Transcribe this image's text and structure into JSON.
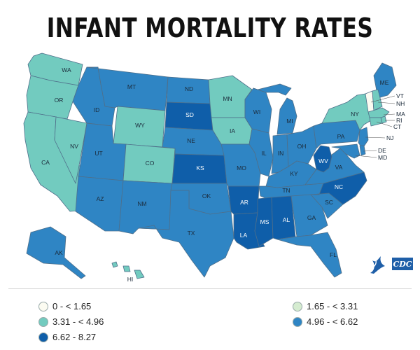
{
  "title": "INFANT MORTALITY RATES",
  "colors": {
    "c0": "#fbfbf1",
    "c1": "#d5ecd0",
    "c2": "#72cbbf",
    "c3": "#2f85c4",
    "c4": "#0f5ea9",
    "border": "#4f6f8a"
  },
  "legend": [
    {
      "label": "0 - < 1.65",
      "color_key": "c0"
    },
    {
      "label": "1.65 - < 3.31",
      "color_key": "c1"
    },
    {
      "label": "3.31 - < 4.96",
      "color_key": "c2"
    },
    {
      "label": "4.96 - < 6.62",
      "color_key": "c3"
    },
    {
      "label": "6.62 - 8.27",
      "color_key": "c4"
    }
  ],
  "states": [
    {
      "abbr": "WA",
      "class": "c2"
    },
    {
      "abbr": "OR",
      "class": "c2"
    },
    {
      "abbr": "CA",
      "class": "c2"
    },
    {
      "abbr": "NV",
      "class": "c2"
    },
    {
      "abbr": "ID",
      "class": "c3"
    },
    {
      "abbr": "MT",
      "class": "c3"
    },
    {
      "abbr": "WY",
      "class": "c2"
    },
    {
      "abbr": "UT",
      "class": "c3"
    },
    {
      "abbr": "CO",
      "class": "c2"
    },
    {
      "abbr": "AZ",
      "class": "c3"
    },
    {
      "abbr": "NM",
      "class": "c3"
    },
    {
      "abbr": "ND",
      "class": "c3"
    },
    {
      "abbr": "SD",
      "class": "c4"
    },
    {
      "abbr": "NE",
      "class": "c3"
    },
    {
      "abbr": "KS",
      "class": "c4"
    },
    {
      "abbr": "OK",
      "class": "c3"
    },
    {
      "abbr": "TX",
      "class": "c3"
    },
    {
      "abbr": "MN",
      "class": "c2"
    },
    {
      "abbr": "IA",
      "class": "c2"
    },
    {
      "abbr": "MO",
      "class": "c3"
    },
    {
      "abbr": "AR",
      "class": "c4"
    },
    {
      "abbr": "LA",
      "class": "c4"
    },
    {
      "abbr": "WI",
      "class": "c3"
    },
    {
      "abbr": "IL",
      "class": "c3"
    },
    {
      "abbr": "MI",
      "class": "c3"
    },
    {
      "abbr": "IN",
      "class": "c3"
    },
    {
      "abbr": "OH",
      "class": "c3"
    },
    {
      "abbr": "KY",
      "class": "c3"
    },
    {
      "abbr": "TN",
      "class": "c3"
    },
    {
      "abbr": "MS",
      "class": "c4"
    },
    {
      "abbr": "AL",
      "class": "c4"
    },
    {
      "abbr": "GA",
      "class": "c3"
    },
    {
      "abbr": "FL",
      "class": "c3"
    },
    {
      "abbr": "SC",
      "class": "c3"
    },
    {
      "abbr": "NC",
      "class": "c4"
    },
    {
      "abbr": "VA",
      "class": "c3"
    },
    {
      "abbr": "WV",
      "class": "c4"
    },
    {
      "abbr": "PA",
      "class": "c3"
    },
    {
      "abbr": "NY",
      "class": "c2"
    },
    {
      "abbr": "ME",
      "class": "c3"
    },
    {
      "abbr": "VT",
      "class": "c0"
    },
    {
      "abbr": "NH",
      "class": "c2"
    },
    {
      "abbr": "MA",
      "class": "c2"
    },
    {
      "abbr": "RI",
      "class": "c2"
    },
    {
      "abbr": "CT",
      "class": "c2"
    },
    {
      "abbr": "NJ",
      "class": "c3"
    },
    {
      "abbr": "DE",
      "class": "c3"
    },
    {
      "abbr": "MD",
      "class": "c3"
    },
    {
      "abbr": "AK",
      "class": "c3"
    },
    {
      "abbr": "HI",
      "class": "c2"
    }
  ],
  "logo": {
    "text": "CDC",
    "icon": "hhs-eagle-icon"
  }
}
